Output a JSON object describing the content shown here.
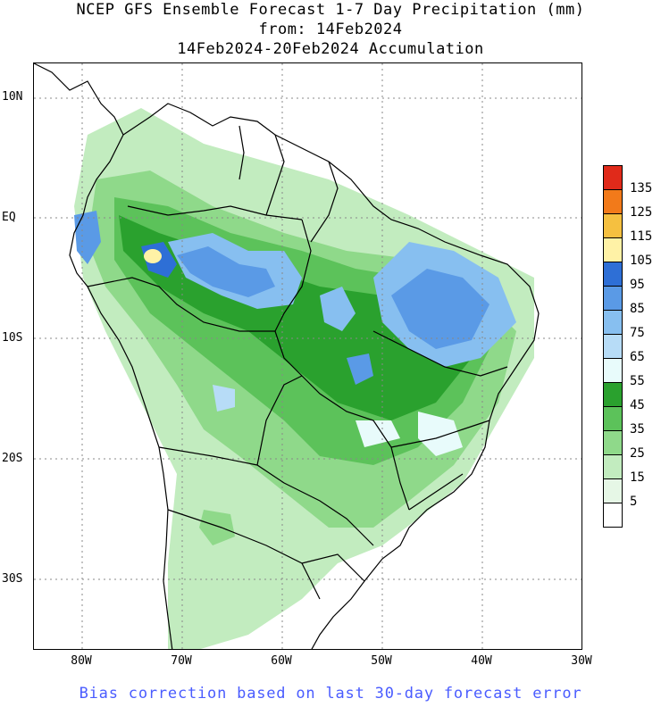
{
  "title": {
    "line1": "NCEP GFS Ensemble Forecast 1-7 Day Precipitation (mm)",
    "line2": "from: 14Feb2024",
    "line3": "14Feb2024-20Feb2024 Accumulation"
  },
  "latitude_labels": [
    "10N",
    "EQ",
    "10S",
    "20S",
    "30S"
  ],
  "longitude_labels": [
    "80W",
    "70W",
    "60W",
    "50W",
    "40W",
    "30W"
  ],
  "legend": {
    "levels": [
      "5",
      "15",
      "25",
      "35",
      "45",
      "55",
      "65",
      "75",
      "85",
      "95",
      "105",
      "115",
      "125",
      "135"
    ],
    "colors": [
      "#ffffff",
      "#e6f7e6",
      "#c2ecbf",
      "#8fd98a",
      "#5cc25a",
      "#2aa12e",
      "#e8fbfb",
      "#b7dcf7",
      "#87bff0",
      "#5a9ae6",
      "#2e6fd6",
      "#fff2a6",
      "#f5c040",
      "#f27a1a",
      "#e02a1a"
    ]
  },
  "footer": "Bias correction based on last 30-day forecast error"
}
